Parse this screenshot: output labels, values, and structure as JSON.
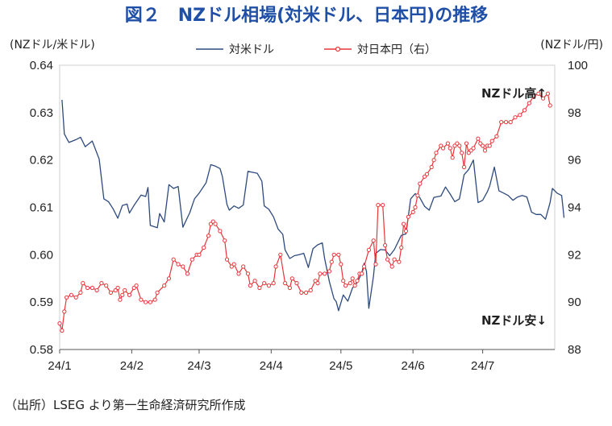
{
  "chart_data": {
    "type": "line",
    "title": "図２　NZドル相場(対米ドル、日本円)の推移",
    "left_axis_unit": "(NZドル/米ドル)",
    "right_axis_unit": "(NZドル/円)",
    "left_ylim": [
      0.58,
      0.64
    ],
    "left_yticks": [
      "0.64",
      "0.63",
      "0.62",
      "0.61",
      "0.60",
      "0.59",
      "0.58"
    ],
    "right_ylim": [
      88,
      100
    ],
    "right_yticks": [
      "100",
      "98",
      "96",
      "94",
      "92",
      "90",
      "88"
    ],
    "x_range_days": [
      0,
      213
    ],
    "x_ticks": [
      {
        "label": "24/1",
        "day": 0
      },
      {
        "label": "24/2",
        "day": 31
      },
      {
        "label": "24/3",
        "day": 60
      },
      {
        "label": "24/4",
        "day": 91
      },
      {
        "label": "24/5",
        "day": 121
      },
      {
        "label": "24/6",
        "day": 152
      },
      {
        "label": "24/7",
        "day": 182
      }
    ],
    "series": [
      {
        "name": "対米ドル",
        "axis": "left",
        "color": "#2e4a7d",
        "points": [
          [
            1,
            0.6327
          ],
          [
            2,
            0.6255
          ],
          [
            4,
            0.6237
          ],
          [
            7,
            0.6243
          ],
          [
            9,
            0.6248
          ],
          [
            11,
            0.6228
          ],
          [
            14,
            0.624
          ],
          [
            17,
            0.6202
          ],
          [
            19,
            0.6118
          ],
          [
            21,
            0.6112
          ],
          [
            23,
            0.6097
          ],
          [
            25,
            0.6077
          ],
          [
            27,
            0.6104
          ],
          [
            29,
            0.6107
          ],
          [
            30,
            0.6088
          ],
          [
            32,
            0.6104
          ],
          [
            35,
            0.6126
          ],
          [
            37,
            0.6123
          ],
          [
            38,
            0.6142
          ],
          [
            39,
            0.6062
          ],
          [
            42,
            0.6057
          ],
          [
            43,
            0.6087
          ],
          [
            45,
            0.6069
          ],
          [
            47,
            0.6148
          ],
          [
            49,
            0.614
          ],
          [
            51,
            0.6144
          ],
          [
            53,
            0.6058
          ],
          [
            56,
            0.6089
          ],
          [
            58,
            0.6118
          ],
          [
            60,
            0.613
          ],
          [
            63,
            0.6152
          ],
          [
            65,
            0.619
          ],
          [
            67,
            0.6187
          ],
          [
            69,
            0.6182
          ],
          [
            70,
            0.6165
          ],
          [
            72,
            0.6106
          ],
          [
            73,
            0.6094
          ],
          [
            75,
            0.6103
          ],
          [
            77,
            0.6098
          ],
          [
            79,
            0.6105
          ],
          [
            81,
            0.6176
          ],
          [
            83,
            0.6174
          ],
          [
            85,
            0.6172
          ],
          [
            87,
            0.6155
          ],
          [
            88,
            0.6103
          ],
          [
            90,
            0.6096
          ],
          [
            92,
            0.608
          ],
          [
            94,
            0.6054
          ],
          [
            96,
            0.6043
          ],
          [
            97,
            0.601
          ],
          [
            99,
            0.5992
          ],
          [
            101,
            0.5998
          ],
          [
            103,
            0.6
          ],
          [
            105,
            0.6003
          ],
          [
            107,
            0.5973
          ],
          [
            109,
            0.6013
          ],
          [
            111,
            0.6021
          ],
          [
            113,
            0.6025
          ],
          [
            114,
            0.5992
          ],
          [
            116,
            0.5944
          ],
          [
            118,
            0.5907
          ],
          [
            119,
            0.5901
          ],
          [
            120,
            0.5882
          ],
          [
            122,
            0.5915
          ],
          [
            124,
            0.5902
          ],
          [
            126,
            0.593
          ],
          [
            128,
            0.5941
          ],
          [
            130,
            0.5962
          ],
          [
            131,
            0.5982
          ],
          [
            132,
            0.5965
          ],
          [
            133,
            0.5887
          ],
          [
            135,
            0.5955
          ],
          [
            136,
            0.6003
          ],
          [
            138,
            0.6011
          ],
          [
            140,
            0.601
          ],
          [
            142,
            0.5998
          ],
          [
            144,
            0.6011
          ],
          [
            147,
            0.6041
          ],
          [
            149,
            0.6044
          ],
          [
            151,
            0.6118
          ],
          [
            153,
            0.6129
          ],
          [
            155,
            0.612
          ],
          [
            157,
            0.6102
          ],
          [
            159,
            0.6094
          ],
          [
            161,
            0.6121
          ],
          [
            164,
            0.6124
          ],
          [
            166,
            0.6143
          ],
          [
            168,
            0.6128
          ],
          [
            170,
            0.6112
          ],
          [
            172,
            0.6118
          ],
          [
            174,
            0.6169
          ],
          [
            176,
            0.618
          ],
          [
            178,
            0.62
          ],
          [
            180,
            0.611
          ],
          [
            182,
            0.6115
          ],
          [
            184,
            0.6133
          ],
          [
            185,
            0.6145
          ],
          [
            187,
            0.6185
          ],
          [
            189,
            0.6135
          ],
          [
            191,
            0.613
          ],
          [
            193,
            0.6125
          ],
          [
            195,
            0.6115
          ],
          [
            197,
            0.6122
          ],
          [
            199,
            0.6125
          ],
          [
            201,
            0.6122
          ],
          [
            203,
            0.609
          ],
          [
            205,
            0.6085
          ],
          [
            207,
            0.6085
          ],
          [
            209,
            0.6075
          ],
          [
            211,
            0.611
          ],
          [
            212,
            0.614
          ],
          [
            214,
            0.613
          ],
          [
            216,
            0.6125
          ],
          [
            217,
            0.6078
          ]
        ]
      },
      {
        "name": "対日本円（右）",
        "axis": "right",
        "color": "#e8353a",
        "points": [
          [
            0,
            89.1
          ],
          [
            1,
            88.8
          ],
          [
            2,
            89.6
          ],
          [
            3,
            90.2
          ],
          [
            5,
            90.3
          ],
          [
            7,
            90.2
          ],
          [
            9,
            90.4
          ],
          [
            10,
            90.8
          ],
          [
            12,
            90.6
          ],
          [
            14,
            90.6
          ],
          [
            16,
            90.5
          ],
          [
            18,
            90.8
          ],
          [
            20,
            90.7
          ],
          [
            22,
            90.4
          ],
          [
            24,
            90.5
          ],
          [
            25,
            90.6
          ],
          [
            26,
            90.1
          ],
          [
            27,
            90.3
          ],
          [
            28,
            90.5
          ],
          [
            30,
            90.3
          ],
          [
            32,
            90.6
          ],
          [
            33,
            90.7
          ],
          [
            35,
            90.1
          ],
          [
            37,
            90.0
          ],
          [
            39,
            90.0
          ],
          [
            41,
            90.1
          ],
          [
            42,
            90.4
          ],
          [
            45,
            90.7
          ],
          [
            47,
            91.0
          ],
          [
            49,
            91.8
          ],
          [
            51,
            91.6
          ],
          [
            53,
            91.5
          ],
          [
            55,
            91.2
          ],
          [
            57,
            91.8
          ],
          [
            59,
            92.0
          ],
          [
            60,
            92.0
          ],
          [
            62,
            92.3
          ],
          [
            64,
            92.8
          ],
          [
            65,
            93.3
          ],
          [
            66,
            93.4
          ],
          [
            67,
            93.3
          ],
          [
            69,
            93.0
          ],
          [
            71,
            92.6
          ],
          [
            72,
            91.8
          ],
          [
            74,
            91.5
          ],
          [
            75,
            91.6
          ],
          [
            77,
            91.2
          ],
          [
            79,
            91.5
          ],
          [
            81,
            91.2
          ],
          [
            82,
            90.7
          ],
          [
            84,
            90.9
          ],
          [
            86,
            90.6
          ],
          [
            88,
            90.8
          ],
          [
            90,
            90.7
          ],
          [
            92,
            90.8
          ],
          [
            93,
            91.5
          ],
          [
            95,
            92.0
          ],
          [
            97,
            90.8
          ],
          [
            99,
            90.6
          ],
          [
            100,
            91.0
          ],
          [
            102,
            90.8
          ],
          [
            104,
            90.4
          ],
          [
            106,
            90.4
          ],
          [
            108,
            90.5
          ],
          [
            110,
            90.9
          ],
          [
            111,
            90.8
          ],
          [
            112,
            91.2
          ],
          [
            114,
            91.2
          ],
          [
            116,
            91.3
          ],
          [
            117,
            91.7
          ],
          [
            118,
            92.0
          ],
          [
            120,
            92.0
          ],
          [
            121,
            91.6
          ],
          [
            122,
            90.9
          ],
          [
            123,
            90.7
          ],
          [
            125,
            90.8
          ],
          [
            126,
            91.0
          ],
          [
            127,
            90.7
          ],
          [
            128,
            90.9
          ],
          [
            129,
            91.2
          ],
          [
            130,
            91.2
          ],
          [
            131,
            91.5
          ],
          [
            133,
            92.2
          ],
          [
            135,
            92.6
          ],
          [
            136,
            91.6
          ],
          [
            137,
            94.1
          ],
          [
            139,
            94.1
          ],
          [
            140,
            92.4
          ],
          [
            141,
            91.8
          ],
          [
            143,
            91.5
          ],
          [
            144,
            91.8
          ],
          [
            146,
            91.7
          ],
          [
            147,
            92.3
          ],
          [
            148,
            93.3
          ],
          [
            149,
            93.0
          ],
          [
            150,
            93.6
          ],
          [
            152,
            93.8
          ],
          [
            153,
            94.0
          ],
          [
            154,
            94.5
          ],
          [
            155,
            95.0
          ],
          [
            157,
            95.3
          ],
          [
            158,
            95.4
          ],
          [
            160,
            95.7
          ],
          [
            161,
            96.0
          ],
          [
            162,
            96.3
          ],
          [
            164,
            96.6
          ],
          [
            165,
            96.5
          ],
          [
            167,
            96.7
          ],
          [
            168,
            96.5
          ],
          [
            169,
            96.1
          ],
          [
            170,
            96.6
          ],
          [
            171,
            96.7
          ],
          [
            172,
            96.6
          ],
          [
            173,
            96.3
          ],
          [
            174,
            95.7
          ],
          [
            175,
            96.7
          ],
          [
            176,
            96.3
          ],
          [
            177,
            96.4
          ],
          [
            178,
            96.5
          ],
          [
            180,
            96.9
          ],
          [
            181,
            96.7
          ],
          [
            182,
            96.6
          ],
          [
            183,
            96.4
          ],
          [
            184,
            96.6
          ],
          [
            185,
            96.6
          ],
          [
            186,
            96.8
          ],
          [
            188,
            97.0
          ],
          [
            190,
            97.6
          ],
          [
            192,
            97.6
          ],
          [
            194,
            97.6
          ],
          [
            196,
            97.8
          ],
          [
            198,
            97.9
          ],
          [
            200,
            98.1
          ],
          [
            202,
            98.4
          ],
          [
            204,
            98.7
          ],
          [
            206,
            98.8
          ],
          [
            208,
            98.6
          ],
          [
            210,
            98.8
          ],
          [
            211,
            98.3
          ]
        ]
      }
    ],
    "annotations": [
      "NZドル高↑",
      "NZドル安↓"
    ]
  },
  "source": "（出所）LSEG より第一生命経済研究所作成"
}
